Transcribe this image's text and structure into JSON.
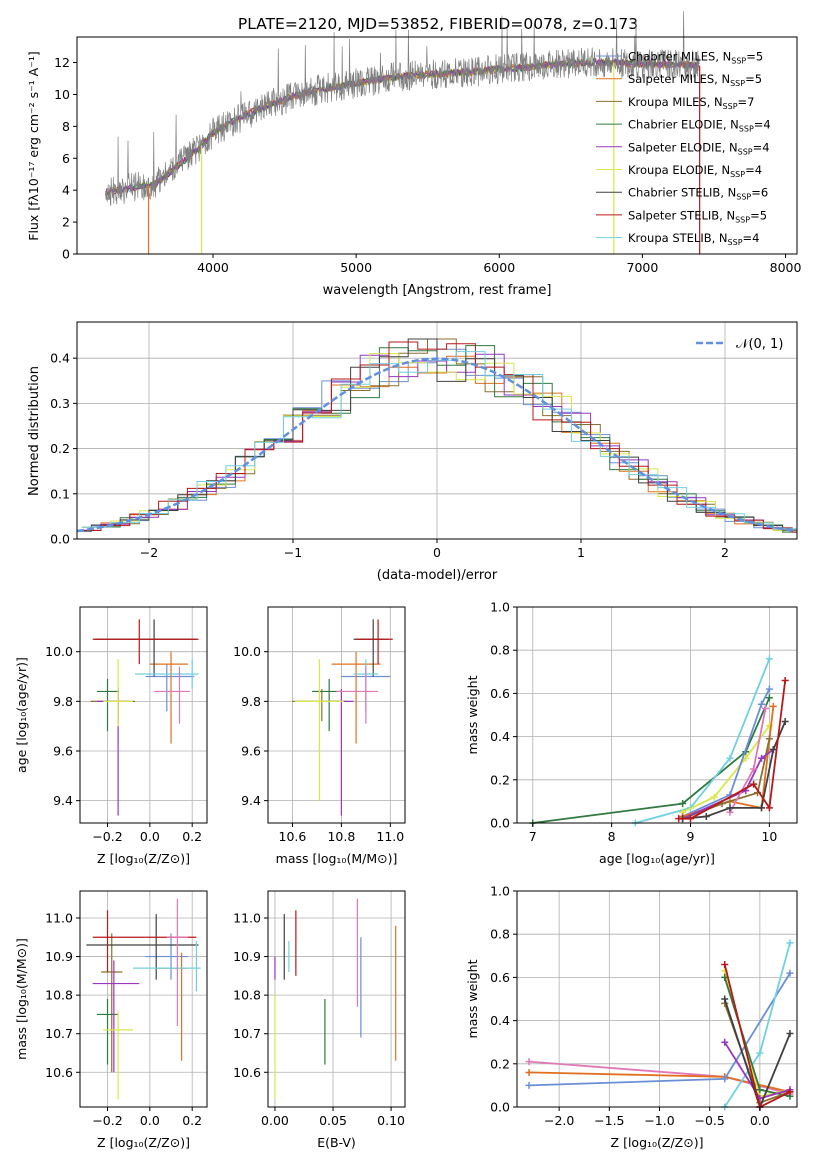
{
  "figure_title": "PLATE=2120, MJD=53852, FIBERID=0078, z=0.173",
  "colors": {
    "chabrier_miles": "#6b8fd6",
    "salpeter_miles": "#e07020",
    "kroupa_miles": "#8a7030",
    "chabrier_elodie": "#2f7a40",
    "salpeter_elodie": "#9a35c0",
    "kroupa_elodie": "#d8e84a",
    "chabrier_stelib": "#404040",
    "salpeter_stelib": "#b81818",
    "kroupa_stelib": "#70d0e0",
    "pink": "#e078b8",
    "gauss": "#6090e0",
    "data": "#808080"
  },
  "chart_data": [
    {
      "id": "spectrum",
      "type": "line",
      "title": "PLATE=2120, MJD=53852, FIBERID=0078, z=0.173",
      "xlabel": "wavelength [Angstrom, rest frame]",
      "ylabel": "Flux [fλ10⁻¹⁷ erg cm⁻² s⁻¹ A⁻¹]",
      "xlim": [
        3050,
        8080
      ],
      "ylim": [
        0,
        13.6
      ],
      "xticks": [
        4000,
        5000,
        6000,
        7000,
        8000
      ],
      "yticks": [
        0,
        2,
        4,
        6,
        8,
        10,
        12
      ],
      "legend_position": "top-right",
      "legend": [
        "Chabrier MILES, N_SSP=5",
        "Salpeter MILES, N_SSP=5",
        "Kroupa MILES, N_SSP=7",
        "Chabrier ELODIE, N_SSP=4",
        "Salpeter ELODIE, N_SSP=4",
        "Kroupa ELODIE, N_SSP=4",
        "Chabrier STELIB, N_SSP=6",
        "Salpeter STELIB, N_SSP=5",
        "Kroupa STELIB, N_SSP=4"
      ],
      "continuum": {
        "x": [
          3250,
          3400,
          3600,
          3750,
          3900,
          4000,
          4200,
          4400,
          4600,
          4800,
          5000,
          5200,
          5400,
          5600,
          5800,
          6000,
          6200,
          6400,
          6600,
          6800,
          7000,
          7200,
          7400
        ],
        "y": [
          3.9,
          4.1,
          4.4,
          5.5,
          6.6,
          7.6,
          8.6,
          9.4,
          10.0,
          10.4,
          10.7,
          11.0,
          11.2,
          11.3,
          11.4,
          11.6,
          11.7,
          11.9,
          12.0,
          12.0,
          11.9,
          11.9,
          11.8
        ]
      }
    },
    {
      "id": "residuals",
      "type": "line",
      "xlabel": "(data-model)/error",
      "ylabel": "Normed distribution",
      "xlim": [
        -2.5,
        2.5
      ],
      "ylim": [
        0,
        0.48
      ],
      "xticks": [
        -2,
        -1,
        0,
        1,
        2
      ],
      "yticks": [
        0.0,
        0.1,
        0.2,
        0.3,
        0.4
      ],
      "legend": [
        "𝒩(0, 1)"
      ],
      "legend_position": "top-right",
      "grid": true
    },
    {
      "id": "age_vs_Z",
      "type": "scatter",
      "xlabel": "Z [log₁₀(Z/Z⊙)]",
      "ylabel": "age  [log₁₀(age/yr)]",
      "xlim": [
        -0.33,
        0.27
      ],
      "ylim": [
        9.31,
        10.18
      ],
      "xticks": [
        -0.2,
        0.0,
        0.2
      ],
      "yticks": [
        9.4,
        9.6,
        9.8,
        10.0
      ],
      "grid": true,
      "points": [
        {
          "series": "Chabrier MILES",
          "x": 0.08,
          "y": 9.9,
          "xerr": [
            0.1,
            0.13
          ],
          "yerr": [
            0.14,
            0.05
          ]
        },
        {
          "series": "Salpeter MILES",
          "x": 0.1,
          "y": 9.95,
          "xerr": [
            0.1,
            0.08
          ],
          "yerr": [
            0.32,
            0.05
          ]
        },
        {
          "series": "Kroupa MILES",
          "x": -0.15,
          "y": 9.8,
          "xerr": [
            0.13,
            0.08
          ],
          "yerr": [
            0.08,
            0.05
          ]
        },
        {
          "series": "Chabrier ELODIE",
          "x": -0.2,
          "y": 9.84,
          "xerr": [
            0.05,
            0.05
          ],
          "yerr": [
            0.16,
            0.05
          ]
        },
        {
          "series": "Salpeter ELODIE",
          "x": -0.15,
          "y": 9.8,
          "xerr": [
            0.1,
            0.05
          ],
          "yerr": [
            0.46,
            0.05
          ]
        },
        {
          "series": "Kroupa ELODIE",
          "x": -0.15,
          "y": 9.8,
          "xerr": [
            0.07,
            0.07
          ],
          "yerr": [
            0.1,
            0.17
          ]
        },
        {
          "series": "Chabrier STELIB",
          "x": 0.02,
          "y": 10.05,
          "xerr": [
            0.28,
            0.2
          ],
          "yerr": [
            0.15,
            0.08
          ]
        },
        {
          "series": "Salpeter STELIB",
          "x": -0.05,
          "y": 10.05,
          "xerr": [
            0.22,
            0.28
          ],
          "yerr": [
            0.1,
            0.08
          ]
        },
        {
          "series": "Kroupa STELIB",
          "x": 0.2,
          "y": 9.91,
          "xerr": [
            0.27,
            0.03
          ],
          "yerr": [
            0.06,
            0.06
          ]
        },
        {
          "series": "pink",
          "x": 0.14,
          "y": 9.84,
          "xerr": [
            0.12,
            0.05
          ],
          "yerr": [
            0.13,
            0.1
          ]
        }
      ]
    },
    {
      "id": "age_vs_mass",
      "type": "scatter",
      "xlabel": "mass [log₁₀(M/M⊙)]",
      "ylabel": "",
      "xlim": [
        10.5,
        11.06
      ],
      "ylim": [
        9.31,
        10.18
      ],
      "xticks": [
        10.6,
        10.8,
        11.0
      ],
      "yticks": [
        9.4,
        9.6,
        9.8,
        10.0
      ],
      "grid": true,
      "points": [
        {
          "series": "Chabrier MILES",
          "x": 10.9,
          "y": 9.9,
          "xerr": [
            0.1,
            0.1
          ],
          "yerr": [
            0.14,
            0.05
          ]
        },
        {
          "series": "Salpeter MILES",
          "x": 10.86,
          "y": 9.95,
          "xerr": [
            0.1,
            0.1
          ],
          "yerr": [
            0.32,
            0.05
          ]
        },
        {
          "series": "Kroupa MILES",
          "x": 10.72,
          "y": 9.8,
          "xerr": [
            0.12,
            0.1
          ],
          "yerr": [
            0.08,
            0.05
          ]
        },
        {
          "series": "Chabrier ELODIE",
          "x": 10.75,
          "y": 9.84,
          "xerr": [
            0.07,
            0.05
          ],
          "yerr": [
            0.16,
            0.05
          ]
        },
        {
          "series": "Salpeter ELODIE",
          "x": 10.8,
          "y": 9.8,
          "xerr": [
            0.05,
            0.05
          ],
          "yerr": [
            0.46,
            0.05
          ]
        },
        {
          "series": "Kroupa ELODIE",
          "x": 10.71,
          "y": 9.8,
          "xerr": [
            0.1,
            0.1
          ],
          "yerr": [
            0.4,
            0.17
          ]
        },
        {
          "series": "Chabrier STELIB",
          "x": 10.93,
          "y": 10.05,
          "xerr": [
            0.08,
            0.06
          ],
          "yerr": [
            0.15,
            0.08
          ]
        },
        {
          "series": "Salpeter STELIB",
          "x": 10.95,
          "y": 10.05,
          "xerr": [
            0.09,
            0.06
          ],
          "yerr": [
            0.1,
            0.08
          ]
        },
        {
          "series": "Kroupa STELIB",
          "x": 10.9,
          "y": 9.91,
          "xerr": [
            0.05,
            0.05
          ],
          "yerr": [
            0.06,
            0.06
          ]
        },
        {
          "series": "pink",
          "x": 10.9,
          "y": 9.84,
          "xerr": [
            0.12,
            0.05
          ],
          "yerr": [
            0.13,
            0.1
          ]
        }
      ]
    },
    {
      "id": "massweight_vs_age",
      "type": "line",
      "xlabel": "age  [log₁₀(age/yr)]",
      "ylabel": "mass weight",
      "xlim": [
        6.8,
        10.35
      ],
      "ylim": [
        0,
        1
      ],
      "xticks": [
        7,
        8,
        9,
        10
      ],
      "yticks": [
        0.0,
        0.2,
        0.4,
        0.6,
        0.8,
        1.0
      ],
      "grid": true,
      "series": [
        {
          "key": "chabrier_elodie",
          "x": [
            7.0,
            8.9,
            9.7,
            10.0
          ],
          "y": [
            0.0,
            0.09,
            0.33,
            0.58
          ]
        },
        {
          "key": "kroupa_stelib",
          "x": [
            8.3,
            9.0,
            9.5,
            10.0
          ],
          "y": [
            0.0,
            0.07,
            0.3,
            0.76
          ]
        },
        {
          "key": "kroupa_elodie",
          "x": [
            8.9,
            9.3,
            9.7,
            10.0
          ],
          "y": [
            0.05,
            0.12,
            0.3,
            0.45
          ]
        },
        {
          "key": "chabrier_miles",
          "x": [
            8.9,
            9.5,
            9.9,
            10.0
          ],
          "y": [
            0.03,
            0.13,
            0.55,
            0.62
          ]
        },
        {
          "key": "salpeter_miles",
          "x": [
            8.9,
            9.5,
            9.9,
            10.05
          ],
          "y": [
            0.03,
            0.1,
            0.07,
            0.54
          ]
        },
        {
          "key": "kroupa_miles",
          "x": [
            8.9,
            9.4,
            9.85,
            10.0
          ],
          "y": [
            0.02,
            0.09,
            0.14,
            0.39
          ]
        },
        {
          "key": "salpeter_elodie",
          "x": [
            8.9,
            9.7,
            9.9,
            10.05
          ],
          "y": [
            0.02,
            0.15,
            0.3,
            0.34
          ]
        },
        {
          "key": "pink",
          "x": [
            9.5,
            9.8,
            9.95
          ],
          "y": [
            0.05,
            0.25,
            0.53
          ]
        },
        {
          "key": "chabrier_stelib",
          "x": [
            8.9,
            9.2,
            9.5,
            9.9,
            10.05,
            10.2
          ],
          "y": [
            0.02,
            0.03,
            0.07,
            0.07,
            0.34,
            0.47
          ]
        },
        {
          "key": "salpeter_stelib",
          "x": [
            8.85,
            9.0,
            9.8,
            10.0,
            10.2
          ],
          "y": [
            0.02,
            0.02,
            0.18,
            0.07,
            0.66
          ]
        }
      ]
    },
    {
      "id": "mass_vs_Z",
      "type": "scatter",
      "xlabel": "Z [log₁₀(Z/Z⊙)]",
      "ylabel": "mass [log₁₀(M/M⊙)]",
      "xlim": [
        -0.33,
        0.27
      ],
      "ylim": [
        10.51,
        11.07
      ],
      "xticks": [
        -0.2,
        0.0,
        0.2
      ],
      "yticks": [
        10.6,
        10.7,
        10.8,
        10.9,
        11.0
      ],
      "grid": true,
      "points": [
        {
          "series": "Chabrier MILES",
          "x": 0.1,
          "y": 10.9,
          "xerr": [
            0.12,
            0.08
          ],
          "yerr": [
            0.06,
            0.06
          ]
        },
        {
          "series": "Salpeter MILES",
          "x": 0.15,
          "y": 10.87,
          "xerr": [
            0.12,
            0.03
          ],
          "yerr": [
            0.24,
            0.04
          ]
        },
        {
          "series": "Kroupa MILES",
          "x": -0.18,
          "y": 10.86,
          "xerr": [
            0.05,
            0.05
          ],
          "yerr": [
            0.26,
            0.1
          ]
        },
        {
          "series": "Chabrier ELODIE",
          "x": -0.2,
          "y": 10.75,
          "xerr": [
            0.05,
            0.05
          ],
          "yerr": [
            0.13,
            0.04
          ]
        },
        {
          "series": "Salpeter ELODIE",
          "x": -0.17,
          "y": 10.83,
          "xerr": [
            0.1,
            0.12
          ],
          "yerr": [
            0.23,
            0.06
          ]
        },
        {
          "series": "Kroupa ELODIE",
          "x": -0.15,
          "y": 10.71,
          "xerr": [
            0.07,
            0.07
          ],
          "yerr": [
            0.18,
            0.05
          ]
        },
        {
          "series": "Chabrier STELIB",
          "x": 0.03,
          "y": 10.93,
          "xerr": [
            0.33,
            0.2
          ],
          "yerr": [
            0.09,
            0.08
          ]
        },
        {
          "series": "Salpeter STELIB",
          "x": -0.2,
          "y": 10.95,
          "xerr": [
            0.07,
            0.42
          ],
          "yerr": [
            0.09,
            0.07
          ]
        },
        {
          "series": "Kroupa STELIB",
          "x": 0.22,
          "y": 10.87,
          "xerr": [
            0.3,
            0.02
          ],
          "yerr": [
            0.06,
            0.07
          ]
        },
        {
          "series": "pink",
          "x": 0.13,
          "y": 10.95,
          "xerr": [
            0.05,
            0.05
          ],
          "yerr": [
            0.23,
            0.1
          ]
        }
      ]
    },
    {
      "id": "mass_vs_ebv",
      "type": "scatter",
      "xlabel": "E(B-V)",
      "ylabel": "",
      "xlim": [
        -0.006,
        0.112
      ],
      "ylim": [
        10.51,
        11.07
      ],
      "xticks": [
        0.0,
        0.05,
        0.1
      ],
      "yticks": [
        10.6,
        10.7,
        10.8,
        10.9,
        11.0
      ],
      "grid": true,
      "points": [
        {
          "series": "Salpeter ELODIE",
          "x": 0.0,
          "y": 10.87,
          "yerr": [
            0.03,
            0.03
          ]
        },
        {
          "series": "Kroupa ELODIE",
          "x": 0.0,
          "y": 10.65,
          "yerr": [
            0.12,
            0.15
          ]
        },
        {
          "series": "Chabrier STELIB",
          "x": 0.008,
          "y": 10.95,
          "yerr": [
            0.11,
            0.06
          ]
        },
        {
          "series": "Kroupa STELIB",
          "x": 0.012,
          "y": 10.89,
          "yerr": [
            0.03,
            0.05
          ]
        },
        {
          "series": "Salpeter STELIB",
          "x": 0.018,
          "y": 10.94,
          "yerr": [
            0.09,
            0.08
          ]
        },
        {
          "series": "Chabrier ELODIE",
          "x": 0.043,
          "y": 10.7,
          "yerr": [
            0.08,
            0.09
          ]
        },
        {
          "series": "pink",
          "x": 0.071,
          "y": 10.96,
          "yerr": [
            0.19,
            0.09
          ]
        },
        {
          "series": "Chabrier MILES",
          "x": 0.074,
          "y": 10.85,
          "yerr": [
            0.16,
            0.1
          ]
        },
        {
          "series": "Salpeter MILES",
          "x": 0.104,
          "y": 10.8,
          "yerr": [
            0.17,
            0.18
          ]
        }
      ]
    },
    {
      "id": "massweight_vs_Z",
      "type": "line",
      "xlabel": "Z [log₁₀(Z/Z⊙)]",
      "ylabel": "mass weight",
      "xlim": [
        -2.42,
        0.37
      ],
      "ylim": [
        0,
        1
      ],
      "xticks": [
        -2.0,
        -1.5,
        -1.0,
        -0.5,
        0.0
      ],
      "yticks": [
        0.0,
        0.2,
        0.4,
        0.6,
        0.8,
        1.0
      ],
      "grid": true,
      "series": [
        {
          "key": "pink",
          "x": [
            -2.3,
            -0.35,
            0.3
          ],
          "y": [
            0.21,
            0.14,
            0.06
          ]
        },
        {
          "key": "salpeter_miles",
          "x": [
            -2.3,
            -0.35,
            0.3
          ],
          "y": [
            0.16,
            0.14,
            0.07
          ]
        },
        {
          "key": "chabrier_miles",
          "x": [
            -2.3,
            -0.35,
            0.3
          ],
          "y": [
            0.1,
            0.13,
            0.62
          ]
        },
        {
          "key": "kroupa_stelib",
          "x": [
            -0.35,
            0.0,
            0.3
          ],
          "y": [
            0.0,
            0.25,
            0.76
          ]
        },
        {
          "key": "kroupa_elodie",
          "x": [
            -0.35,
            0.0,
            0.3
          ],
          "y": [
            0.63,
            0.05,
            0.08
          ]
        },
        {
          "key": "chabrier_elodie",
          "x": [
            -0.35,
            0.0,
            0.3
          ],
          "y": [
            0.6,
            0.08,
            0.05
          ]
        },
        {
          "key": "kroupa_miles",
          "x": [
            -0.35,
            0.0,
            0.3
          ],
          "y": [
            0.48,
            0.02,
            0.07
          ]
        },
        {
          "key": "salpeter_elodie",
          "x": [
            -0.35,
            0.0,
            0.3
          ],
          "y": [
            0.3,
            0.04,
            0.08
          ]
        },
        {
          "key": "chabrier_stelib",
          "x": [
            -0.35,
            0.0,
            0.3
          ],
          "y": [
            0.5,
            0.0,
            0.34
          ]
        },
        {
          "key": "salpeter_stelib",
          "x": [
            -0.35,
            0.0,
            0.3
          ],
          "y": [
            0.66,
            0.0,
            0.07
          ]
        }
      ]
    }
  ]
}
